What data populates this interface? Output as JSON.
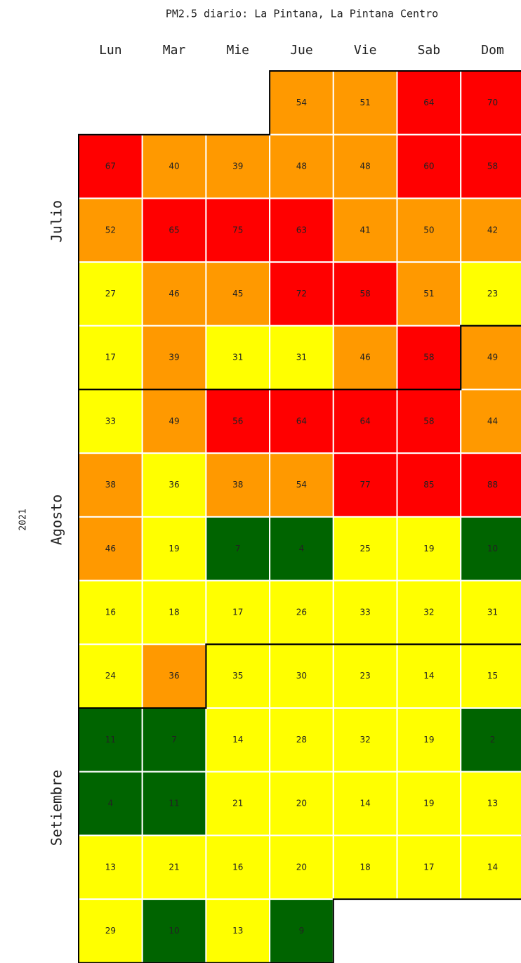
{
  "chart_data": {
    "type": "calendar_heatmap",
    "title": "PM2.5 diario: La Pintana, La Pintana Centro",
    "year_label": "2021",
    "weekdays": [
      "Lun",
      "Mar",
      "Mie",
      "Jue",
      "Vie",
      "Sab",
      "Dom"
    ],
    "months": [
      "Julio",
      "Agosto",
      "Setiembre"
    ],
    "weeks": [
      {
        "values": [
          null,
          null,
          null,
          54,
          51,
          64,
          70
        ],
        "colors": [
          null,
          null,
          null,
          "#ff9900",
          "#ff9900",
          "#ff0000",
          "#ff0000"
        ]
      },
      {
        "values": [
          67,
          40,
          39,
          48,
          48,
          60,
          58
        ],
        "colors": [
          "#ff0000",
          "#ff9900",
          "#ff9900",
          "#ff9900",
          "#ff9900",
          "#ff0000",
          "#ff0000"
        ]
      },
      {
        "values": [
          52,
          65,
          75,
          63,
          41,
          50,
          42
        ],
        "colors": [
          "#ff9900",
          "#ff0000",
          "#ff0000",
          "#ff0000",
          "#ff9900",
          "#ff9900",
          "#ff9900"
        ]
      },
      {
        "values": [
          27,
          46,
          45,
          72,
          58,
          51,
          23
        ],
        "colors": [
          "#ffff00",
          "#ff9900",
          "#ff9900",
          "#ff0000",
          "#ff0000",
          "#ff9900",
          "#ffff00"
        ]
      },
      {
        "values": [
          17,
          39,
          31,
          31,
          46,
          58,
          49
        ],
        "colors": [
          "#ffff00",
          "#ff9900",
          "#ffff00",
          "#ffff00",
          "#ff9900",
          "#ff0000",
          "#ff9900"
        ]
      },
      {
        "values": [
          33,
          49,
          56,
          64,
          64,
          58,
          44
        ],
        "colors": [
          "#ffff00",
          "#ff9900",
          "#ff0000",
          "#ff0000",
          "#ff0000",
          "#ff0000",
          "#ff9900"
        ]
      },
      {
        "values": [
          38,
          36,
          38,
          54,
          77,
          85,
          88
        ],
        "colors": [
          "#ff9900",
          "#ffff00",
          "#ff9900",
          "#ff9900",
          "#ff0000",
          "#ff0000",
          "#ff0000"
        ]
      },
      {
        "values": [
          46,
          19,
          7,
          4,
          25,
          19,
          10
        ],
        "colors": [
          "#ff9900",
          "#ffff00",
          "#006400",
          "#006400",
          "#ffff00",
          "#ffff00",
          "#006400"
        ]
      },
      {
        "values": [
          16,
          18,
          17,
          26,
          33,
          32,
          31
        ],
        "colors": [
          "#ffff00",
          "#ffff00",
          "#ffff00",
          "#ffff00",
          "#ffff00",
          "#ffff00",
          "#ffff00"
        ]
      },
      {
        "values": [
          24,
          36,
          35,
          30,
          23,
          14,
          15
        ],
        "colors": [
          "#ffff00",
          "#ff9900",
          "#ffff00",
          "#ffff00",
          "#ffff00",
          "#ffff00",
          "#ffff00"
        ]
      },
      {
        "values": [
          11,
          7,
          14,
          28,
          32,
          19,
          2
        ],
        "colors": [
          "#006400",
          "#006400",
          "#ffff00",
          "#ffff00",
          "#ffff00",
          "#ffff00",
          "#006400"
        ]
      },
      {
        "values": [
          4,
          11,
          21,
          20,
          14,
          19,
          13
        ],
        "colors": [
          "#006400",
          "#006400",
          "#ffff00",
          "#ffff00",
          "#ffff00",
          "#ffff00",
          "#ffff00"
        ]
      },
      {
        "values": [
          13,
          21,
          16,
          20,
          18,
          17,
          14
        ],
        "colors": [
          "#ffff00",
          "#ffff00",
          "#ffff00",
          "#ffff00",
          "#ffff00",
          "#ffff00",
          "#ffff00"
        ]
      },
      {
        "values": [
          29,
          10,
          13,
          9,
          null,
          null,
          null
        ],
        "colors": [
          "#ffff00",
          "#006400",
          "#ffff00",
          "#006400",
          null,
          null,
          null
        ]
      }
    ]
  }
}
